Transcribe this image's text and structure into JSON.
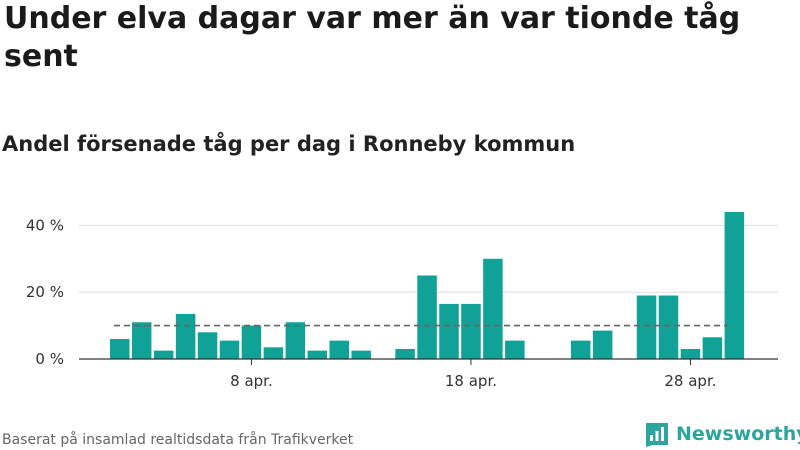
{
  "header": {
    "title": "Under elva dagar var mer än var tionde tåg sent",
    "subtitle": "Andel försenade tåg per dag i Ronneby kommun"
  },
  "footer": {
    "source": "Baserat på insamlad realtidsdata från Trafikverket",
    "logo_text": "Newsworthy",
    "logo_icon": "bar-chart-icon"
  },
  "colors": {
    "bar": "#10a296",
    "reference_line": "#666666",
    "grid": "#dddddd",
    "logo": "#2ba69c"
  },
  "chart_data": {
    "type": "bar",
    "x": [
      "2 apr.",
      "3 apr.",
      "4 apr.",
      "5 apr.",
      "6 apr.",
      "7 apr.",
      "8 apr.",
      "9 apr.",
      "10 apr.",
      "11 apr.",
      "12 apr.",
      "13 apr.",
      "14 apr.",
      "15 apr.",
      "16 apr.",
      "17 apr.",
      "18 apr.",
      "19 apr.",
      "20 apr.",
      "21 apr.",
      "22 apr.",
      "23 apr.",
      "24 apr.",
      "25 apr.",
      "26 apr.",
      "27 apr.",
      "28 apr.",
      "29 apr.",
      "30 apr."
    ],
    "values": [
      6,
      11,
      2.5,
      13.5,
      8,
      5.5,
      10,
      3.5,
      11,
      2.5,
      5.5,
      2.5,
      null,
      3,
      25,
      16.5,
      16.5,
      30,
      5.5,
      null,
      null,
      5.5,
      8.5,
      null,
      19,
      19,
      3,
      6.5,
      44
    ],
    "x_ticks": [
      {
        "label": "8 apr.",
        "index": 6
      },
      {
        "label": "18 apr.",
        "index": 16
      },
      {
        "label": "28 apr.",
        "index": 26
      }
    ],
    "y_ticks": [
      {
        "label": "0 %",
        "value": 0
      },
      {
        "label": "20 %",
        "value": 20
      },
      {
        "label": "40 %",
        "value": 40
      }
    ],
    "ylim": [
      0,
      47
    ],
    "reference_value": 10,
    "grid": true
  }
}
